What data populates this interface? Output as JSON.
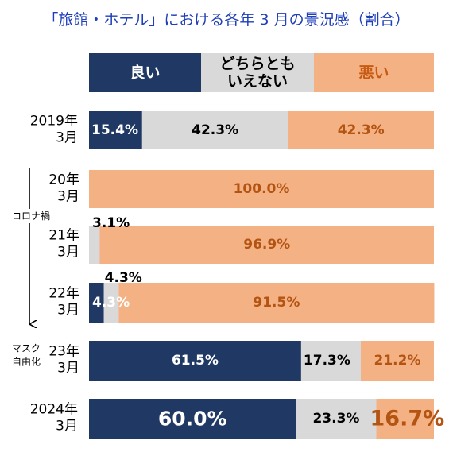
{
  "chart_data": {
    "type": "bar",
    "orientation": "horizontal",
    "stacked": true,
    "percent": true,
    "title": "「旅館・ホテル」における各年 3 月の景況感（割合）",
    "legend": {
      "position": "top",
      "labels": [
        "良い",
        "どちらとも\nいえない",
        "悪い"
      ]
    },
    "series": [
      {
        "name": "良い",
        "color": "#1f3864",
        "values": [
          15.4,
          0.0,
          0.0,
          4.3,
          61.5,
          60.0
        ]
      },
      {
        "name": "どちらともいえない",
        "color": "#d9d9d9",
        "values": [
          42.3,
          0.0,
          3.1,
          4.3,
          17.3,
          23.3
        ]
      },
      {
        "name": "悪い",
        "color": "#f4b183",
        "values": [
          42.3,
          100.0,
          96.9,
          91.5,
          21.2,
          16.7
        ]
      }
    ],
    "categories": [
      "2019年\n3月",
      "20年\n3月",
      "21年\n3月",
      "22年\n3月",
      "23年\n3月",
      "2024年\n3月"
    ],
    "side_labels": {
      "corona": "コロナ禍",
      "mask": "マスク\n自由化"
    },
    "xlim": [
      0,
      100
    ]
  }
}
